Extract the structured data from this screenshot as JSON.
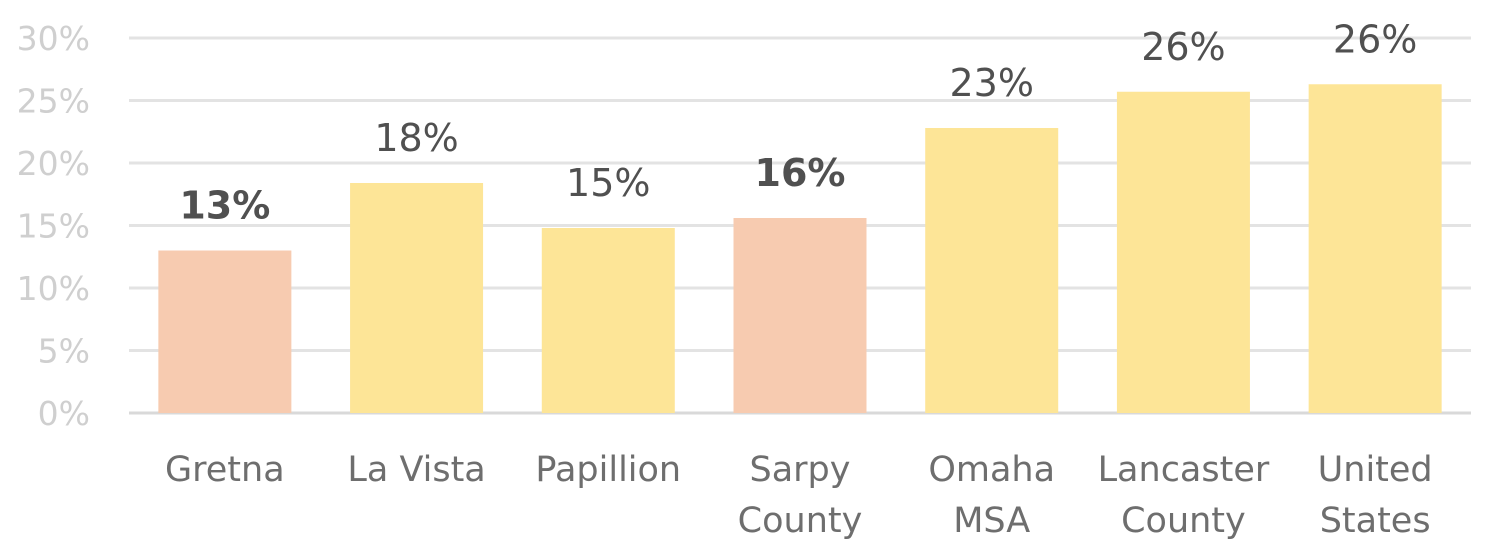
{
  "chart_data": {
    "type": "bar",
    "title": "",
    "xlabel": "",
    "ylabel": "",
    "ylim": [
      0,
      30
    ],
    "yticks": [
      0,
      5,
      10,
      15,
      20,
      25,
      30
    ],
    "ytick_format": "percent",
    "grid": true,
    "legend": "none",
    "categories": [
      [
        "Gretna"
      ],
      [
        "La Vista"
      ],
      [
        "Papillion"
      ],
      [
        "Sarpy",
        "County"
      ],
      [
        "Omaha",
        "MSA"
      ],
      [
        "Lancaster",
        "County"
      ],
      [
        "United",
        "States"
      ]
    ],
    "values": [
      13,
      18.4,
      14.8,
      15.6,
      22.8,
      25.7,
      26.3
    ],
    "data_labels": [
      "13%",
      "18%",
      "15%",
      "16%",
      "23%",
      "26%",
      "26%"
    ],
    "highlighted": [
      true,
      false,
      false,
      true,
      false,
      false,
      false
    ],
    "colors": {
      "highlight": "#f7cbb0",
      "default": "#fde597"
    }
  }
}
